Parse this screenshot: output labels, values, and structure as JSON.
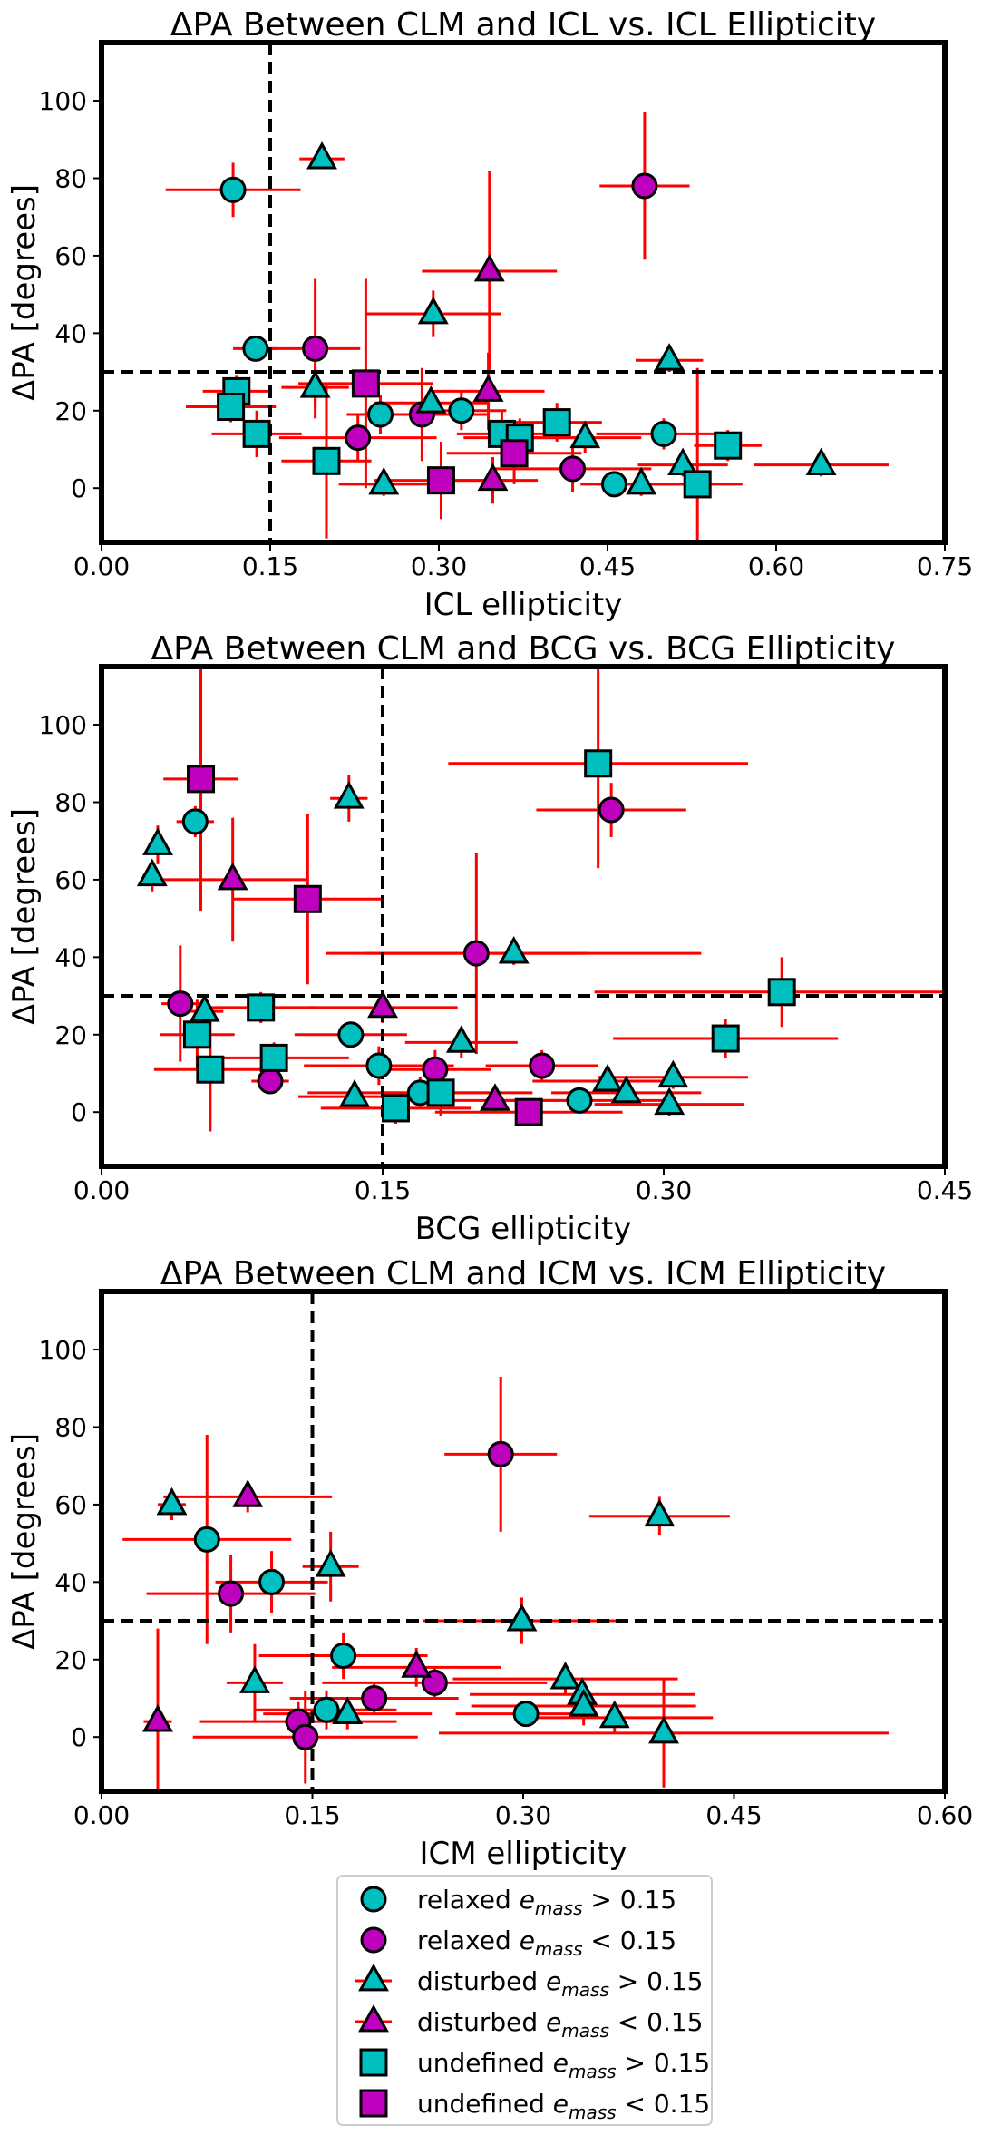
{
  "colors": {
    "cyan": "#00BFBF",
    "magenta": "#BF00BF",
    "error": "#FF0000",
    "axis": "#000000"
  },
  "chart_data": [
    {
      "type": "scatter",
      "title": "ΔPA Between CLM and ICL vs. ICL Ellipticity",
      "xlabel": "ICL ellipticity",
      "ylabel": "ΔPA [degrees]",
      "xlim": [
        0,
        0.75
      ],
      "ylim": [
        -14,
        115
      ],
      "xticks": [
        0,
        0.15,
        0.3,
        0.45,
        0.6,
        0.75
      ],
      "xtick_labels": [
        "0.00",
        "0.15",
        "0.30",
        "0.45",
        "0.60",
        "0.75"
      ],
      "yticks": [
        0,
        20,
        40,
        60,
        80,
        100
      ],
      "ytick_labels": [
        "0",
        "20",
        "40",
        "60",
        "80",
        "100"
      ],
      "vline": 0.15,
      "hline": 30,
      "points": [
        {
          "x": 0.117,
          "y": 77,
          "xerr": 0.06,
          "yerr": 7,
          "marker": "circle",
          "color": "cyan"
        },
        {
          "x": 0.137,
          "y": 36,
          "xerr": 0.02,
          "yerr": 3,
          "marker": "circle",
          "color": "cyan"
        },
        {
          "x": 0.248,
          "y": 19,
          "xerr": 0.03,
          "yerr": 5,
          "marker": "circle",
          "color": "cyan"
        },
        {
          "x": 0.32,
          "y": 20,
          "xerr": 0.04,
          "yerr": 5,
          "marker": "circle",
          "color": "cyan"
        },
        {
          "x": 0.456,
          "y": 1,
          "xerr": 0.03,
          "yerr": 3,
          "marker": "circle",
          "color": "cyan"
        },
        {
          "x": 0.5,
          "y": 14,
          "xerr": 0.06,
          "yerr": 4,
          "marker": "circle",
          "color": "cyan"
        },
        {
          "x": 0.483,
          "y": 78,
          "xerr": 0.04,
          "yerr": 19,
          "marker": "circle",
          "color": "magenta"
        },
        {
          "x": 0.19,
          "y": 36,
          "xerr": 0.04,
          "yerr": 18,
          "marker": "circle",
          "color": "magenta"
        },
        {
          "x": 0.228,
          "y": 13,
          "xerr": 0.07,
          "yerr": 6,
          "marker": "circle",
          "color": "magenta"
        },
        {
          "x": 0.285,
          "y": 19,
          "xerr": 0.06,
          "yerr": 12,
          "marker": "circle",
          "color": "magenta"
        },
        {
          "x": 0.419,
          "y": 5,
          "xerr": 0.07,
          "yerr": 6,
          "marker": "circle",
          "color": "magenta"
        },
        {
          "x": 0.196,
          "y": 85,
          "xerr": 0.02,
          "yerr": 2,
          "marker": "triangle",
          "color": "cyan"
        },
        {
          "x": 0.295,
          "y": 45,
          "xerr": 0.06,
          "yerr": 6,
          "marker": "triangle",
          "color": "cyan"
        },
        {
          "x": 0.19,
          "y": 26,
          "xerr": 0.03,
          "yerr": 5,
          "marker": "triangle",
          "color": "cyan"
        },
        {
          "x": 0.293,
          "y": 22,
          "xerr": 0.05,
          "yerr": 4,
          "marker": "triangle",
          "color": "cyan"
        },
        {
          "x": 0.251,
          "y": 1,
          "xerr": 0.04,
          "yerr": 3,
          "marker": "triangle",
          "color": "cyan"
        },
        {
          "x": 0.43,
          "y": 13,
          "xerr": 0.05,
          "yerr": 4,
          "marker": "triangle",
          "color": "cyan"
        },
        {
          "x": 0.48,
          "y": 1,
          "xerr": 0.04,
          "yerr": 3,
          "marker": "triangle",
          "color": "cyan"
        },
        {
          "x": 0.505,
          "y": 33,
          "xerr": 0.03,
          "yerr": 3,
          "marker": "triangle",
          "color": "cyan"
        },
        {
          "x": 0.517,
          "y": 6,
          "xerr": 0.04,
          "yerr": 3,
          "marker": "triangle",
          "color": "cyan"
        },
        {
          "x": 0.64,
          "y": 6,
          "xerr": 0.06,
          "yerr": 3,
          "marker": "triangle",
          "color": "cyan"
        },
        {
          "x": 0.345,
          "y": 56,
          "xerr": 0.06,
          "yerr": 26,
          "marker": "triangle",
          "color": "magenta"
        },
        {
          "x": 0.344,
          "y": 25,
          "xerr": 0.05,
          "yerr": 10,
          "marker": "triangle",
          "color": "magenta"
        },
        {
          "x": 0.348,
          "y": 2,
          "xerr": 0.04,
          "yerr": 6,
          "marker": "triangle",
          "color": "magenta"
        },
        {
          "x": 0.12,
          "y": 25,
          "xerr": 0.03,
          "yerr": 4,
          "marker": "square",
          "color": "cyan"
        },
        {
          "x": 0.115,
          "y": 21,
          "xerr": 0.04,
          "yerr": 4,
          "marker": "square",
          "color": "cyan"
        },
        {
          "x": 0.138,
          "y": 14,
          "xerr": 0.04,
          "yerr": 6,
          "marker": "square",
          "color": "cyan"
        },
        {
          "x": 0.2,
          "y": 7,
          "xerr": 0.04,
          "yerr": 20,
          "marker": "square",
          "color": "cyan"
        },
        {
          "x": 0.356,
          "y": 14,
          "xerr": 0.04,
          "yerr": 6,
          "marker": "square",
          "color": "cyan"
        },
        {
          "x": 0.372,
          "y": 13,
          "xerr": 0.05,
          "yerr": 5,
          "marker": "square",
          "color": "cyan"
        },
        {
          "x": 0.405,
          "y": 17,
          "xerr": 0.04,
          "yerr": 5,
          "marker": "square",
          "color": "cyan"
        },
        {
          "x": 0.53,
          "y": 1,
          "xerr": 0.04,
          "yerr": 30,
          "marker": "square",
          "color": "cyan"
        },
        {
          "x": 0.557,
          "y": 11,
          "xerr": 0.03,
          "yerr": 4,
          "marker": "square",
          "color": "cyan"
        },
        {
          "x": 0.235,
          "y": 27,
          "xerr": 0.06,
          "yerr": 27,
          "marker": "square",
          "color": "magenta"
        },
        {
          "x": 0.302,
          "y": 2,
          "xerr": 0.06,
          "yerr": 10,
          "marker": "square",
          "color": "magenta"
        },
        {
          "x": 0.367,
          "y": 9,
          "xerr": 0.06,
          "yerr": 8,
          "marker": "square",
          "color": "magenta"
        }
      ]
    },
    {
      "type": "scatter",
      "title": "ΔPA Between CLM and BCG vs. BCG Ellipticity",
      "xlabel": "BCG ellipticity",
      "ylabel": "ΔPA [degrees]",
      "xlim": [
        0,
        0.45
      ],
      "ylim": [
        -14,
        115
      ],
      "xticks": [
        0,
        0.15,
        0.3,
        0.45
      ],
      "xtick_labels": [
        "0.00",
        "0.15",
        "0.30",
        "0.45"
      ],
      "yticks": [
        0,
        20,
        40,
        60,
        80,
        100
      ],
      "ytick_labels": [
        "0",
        "20",
        "40",
        "60",
        "80",
        "100"
      ],
      "vline": 0.15,
      "hline": 30,
      "points": [
        {
          "x": 0.05,
          "y": 75,
          "xerr": 0.01,
          "yerr": 4,
          "marker": "circle",
          "color": "cyan"
        },
        {
          "x": 0.133,
          "y": 20,
          "xerr": 0.03,
          "yerr": 3,
          "marker": "circle",
          "color": "cyan"
        },
        {
          "x": 0.148,
          "y": 12,
          "xerr": 0.04,
          "yerr": 5,
          "marker": "circle",
          "color": "cyan"
        },
        {
          "x": 0.17,
          "y": 5,
          "xerr": 0.06,
          "yerr": 4,
          "marker": "circle",
          "color": "cyan"
        },
        {
          "x": 0.255,
          "y": 3,
          "xerr": 0.05,
          "yerr": 3,
          "marker": "circle",
          "color": "cyan"
        },
        {
          "x": 0.272,
          "y": 78,
          "xerr": 0.04,
          "yerr": 7,
          "marker": "circle",
          "color": "magenta"
        },
        {
          "x": 0.042,
          "y": 28,
          "xerr": 0.01,
          "yerr": 15,
          "marker": "circle",
          "color": "magenta"
        },
        {
          "x": 0.2,
          "y": 41,
          "xerr": 0.06,
          "yerr": 26,
          "marker": "circle",
          "color": "magenta"
        },
        {
          "x": 0.09,
          "y": 8,
          "xerr": 0.01,
          "yerr": 3,
          "marker": "circle",
          "color": "magenta"
        },
        {
          "x": 0.178,
          "y": 11,
          "xerr": 0.03,
          "yerr": 5,
          "marker": "circle",
          "color": "magenta"
        },
        {
          "x": 0.235,
          "y": 12,
          "xerr": 0.03,
          "yerr": 4,
          "marker": "circle",
          "color": "magenta"
        },
        {
          "x": 0.03,
          "y": 69,
          "xerr": 0.005,
          "yerr": 5,
          "marker": "triangle",
          "color": "cyan"
        },
        {
          "x": 0.027,
          "y": 61,
          "xerr": 0.005,
          "yerr": 4,
          "marker": "triangle",
          "color": "cyan"
        },
        {
          "x": 0.132,
          "y": 81,
          "xerr": 0.01,
          "yerr": 6,
          "marker": "triangle",
          "color": "cyan"
        },
        {
          "x": 0.055,
          "y": 26,
          "xerr": 0.01,
          "yerr": 4,
          "marker": "triangle",
          "color": "cyan"
        },
        {
          "x": 0.22,
          "y": 41,
          "xerr": 0.1,
          "yerr": 3,
          "marker": "triangle",
          "color": "cyan"
        },
        {
          "x": 0.192,
          "y": 18,
          "xerr": 0.03,
          "yerr": 4,
          "marker": "triangle",
          "color": "cyan"
        },
        {
          "x": 0.135,
          "y": 4,
          "xerr": 0.03,
          "yerr": 3,
          "marker": "triangle",
          "color": "cyan"
        },
        {
          "x": 0.27,
          "y": 8,
          "xerr": 0.04,
          "yerr": 3,
          "marker": "triangle",
          "color": "cyan"
        },
        {
          "x": 0.28,
          "y": 5,
          "xerr": 0.04,
          "yerr": 3,
          "marker": "triangle",
          "color": "cyan"
        },
        {
          "x": 0.305,
          "y": 9,
          "xerr": 0.04,
          "yerr": 3,
          "marker": "triangle",
          "color": "cyan"
        },
        {
          "x": 0.303,
          "y": 2,
          "xerr": 0.04,
          "yerr": 3,
          "marker": "triangle",
          "color": "cyan"
        },
        {
          "x": 0.07,
          "y": 60,
          "xerr": 0.04,
          "yerr": 16,
          "marker": "triangle",
          "color": "magenta"
        },
        {
          "x": 0.15,
          "y": 27,
          "xerr": 0.04,
          "yerr": 4,
          "marker": "triangle",
          "color": "magenta"
        },
        {
          "x": 0.21,
          "y": 3,
          "xerr": 0.04,
          "yerr": 3,
          "marker": "triangle",
          "color": "magenta"
        },
        {
          "x": 0.265,
          "y": 90,
          "xerr": 0.08,
          "yerr": 27,
          "marker": "square",
          "color": "cyan"
        },
        {
          "x": 0.085,
          "y": 27,
          "xerr": 0.03,
          "yerr": 4,
          "marker": "square",
          "color": "cyan"
        },
        {
          "x": 0.051,
          "y": 20,
          "xerr": 0.02,
          "yerr": 9,
          "marker": "square",
          "color": "cyan"
        },
        {
          "x": 0.058,
          "y": 11,
          "xerr": 0.03,
          "yerr": 16,
          "marker": "square",
          "color": "cyan"
        },
        {
          "x": 0.092,
          "y": 14,
          "xerr": 0.04,
          "yerr": 4,
          "marker": "square",
          "color": "cyan"
        },
        {
          "x": 0.157,
          "y": 1,
          "xerr": 0.04,
          "yerr": 4,
          "marker": "square",
          "color": "cyan"
        },
        {
          "x": 0.181,
          "y": 5,
          "xerr": 0.03,
          "yerr": 6,
          "marker": "square",
          "color": "cyan"
        },
        {
          "x": 0.363,
          "y": 31,
          "xerr": 0.1,
          "yerr": 9,
          "marker": "square",
          "color": "cyan"
        },
        {
          "x": 0.333,
          "y": 19,
          "xerr": 0.06,
          "yerr": 5,
          "marker": "square",
          "color": "cyan"
        },
        {
          "x": 0.053,
          "y": 86,
          "xerr": 0.02,
          "yerr": 34,
          "marker": "square",
          "color": "magenta"
        },
        {
          "x": 0.11,
          "y": 55,
          "xerr": 0.04,
          "yerr": 22,
          "marker": "square",
          "color": "magenta"
        },
        {
          "x": 0.228,
          "y": 0,
          "xerr": 0.05,
          "yerr": 3,
          "marker": "square",
          "color": "magenta"
        }
      ]
    },
    {
      "type": "scatter",
      "title": "ΔPA Between CLM and ICM vs. ICM Ellipticity",
      "xlabel": "ICM  ellipticity",
      "ylabel": "ΔPA [degrees]",
      "xlim": [
        0,
        0.6
      ],
      "ylim": [
        -14,
        115
      ],
      "xticks": [
        0,
        0.15,
        0.3,
        0.45,
        0.6
      ],
      "xtick_labels": [
        "0.00",
        "0.15",
        "0.30",
        "0.45",
        "0.60"
      ],
      "yticks": [
        0,
        20,
        40,
        60,
        80,
        100
      ],
      "ytick_labels": [
        "0",
        "20",
        "40",
        "60",
        "80",
        "100"
      ],
      "vline": 0.15,
      "hline": 30,
      "points": [
        {
          "x": 0.075,
          "y": 51,
          "xerr": 0.06,
          "yerr": 27,
          "marker": "circle",
          "color": "cyan"
        },
        {
          "x": 0.121,
          "y": 40,
          "xerr": 0.04,
          "yerr": 8,
          "marker": "circle",
          "color": "cyan"
        },
        {
          "x": 0.172,
          "y": 21,
          "xerr": 0.06,
          "yerr": 6,
          "marker": "circle",
          "color": "cyan"
        },
        {
          "x": 0.16,
          "y": 7,
          "xerr": 0.05,
          "yerr": 5,
          "marker": "circle",
          "color": "cyan"
        },
        {
          "x": 0.302,
          "y": 6,
          "xerr": 0.05,
          "yerr": 3,
          "marker": "circle",
          "color": "cyan"
        },
        {
          "x": 0.284,
          "y": 73,
          "xerr": 0.04,
          "yerr": 20,
          "marker": "circle",
          "color": "magenta"
        },
        {
          "x": 0.092,
          "y": 37,
          "xerr": 0.06,
          "yerr": 10,
          "marker": "circle",
          "color": "magenta"
        },
        {
          "x": 0.14,
          "y": 4,
          "xerr": 0.07,
          "yerr": 5,
          "marker": "circle",
          "color": "magenta"
        },
        {
          "x": 0.145,
          "y": 0,
          "xerr": 0.08,
          "yerr": 12,
          "marker": "circle",
          "color": "magenta"
        },
        {
          "x": 0.194,
          "y": 10,
          "xerr": 0.06,
          "yerr": 4,
          "marker": "circle",
          "color": "magenta"
        },
        {
          "x": 0.237,
          "y": 14,
          "xerr": 0.08,
          "yerr": 4,
          "marker": "circle",
          "color": "magenta"
        },
        {
          "x": 0.05,
          "y": 60,
          "xerr": 0.01,
          "yerr": 4,
          "marker": "triangle",
          "color": "cyan"
        },
        {
          "x": 0.163,
          "y": 44,
          "xerr": 0.02,
          "yerr": 9,
          "marker": "triangle",
          "color": "cyan"
        },
        {
          "x": 0.109,
          "y": 14,
          "xerr": 0.02,
          "yerr": 10,
          "marker": "triangle",
          "color": "cyan"
        },
        {
          "x": 0.299,
          "y": 30,
          "xerr": 0.07,
          "yerr": 6,
          "marker": "triangle",
          "color": "cyan"
        },
        {
          "x": 0.33,
          "y": 15,
          "xerr": 0.08,
          "yerr": 4,
          "marker": "triangle",
          "color": "cyan"
        },
        {
          "x": 0.342,
          "y": 11,
          "xerr": 0.08,
          "yerr": 4,
          "marker": "triangle",
          "color": "cyan"
        },
        {
          "x": 0.343,
          "y": 8,
          "xerr": 0.08,
          "yerr": 5,
          "marker": "triangle",
          "color": "cyan"
        },
        {
          "x": 0.365,
          "y": 5,
          "xerr": 0.07,
          "yerr": 4,
          "marker": "triangle",
          "color": "cyan"
        },
        {
          "x": 0.4,
          "y": 1,
          "xerr": 0.16,
          "yerr": 14,
          "marker": "triangle",
          "color": "cyan"
        },
        {
          "x": 0.397,
          "y": 57,
          "xerr": 0.05,
          "yerr": 5,
          "marker": "triangle",
          "color": "cyan"
        },
        {
          "x": 0.175,
          "y": 6,
          "xerr": 0.06,
          "yerr": 4,
          "marker": "triangle",
          "color": "cyan"
        },
        {
          "x": 0.104,
          "y": 62,
          "xerr": 0.06,
          "yerr": 4,
          "marker": "triangle",
          "color": "magenta"
        },
        {
          "x": 0.04,
          "y": 4,
          "xerr": 0.01,
          "yerr": 24,
          "marker": "triangle",
          "color": "magenta"
        },
        {
          "x": 0.224,
          "y": 18,
          "xerr": 0.06,
          "yerr": 5,
          "marker": "triangle",
          "color": "magenta"
        }
      ]
    }
  ],
  "legend": {
    "items": [
      {
        "marker": "circle",
        "color": "cyan",
        "label": "relaxed",
        "math_base": "e",
        "math_sub": "mass",
        "relation": " > 0.15"
      },
      {
        "marker": "circle",
        "color": "magenta",
        "label": "relaxed",
        "math_base": "e",
        "math_sub": "mass",
        "relation": " < 0.15"
      },
      {
        "marker": "triangle",
        "color": "cyan",
        "label": "disturbed",
        "math_base": "e",
        "math_sub": "mass",
        "relation": " > 0.15"
      },
      {
        "marker": "triangle",
        "color": "magenta",
        "label": "disturbed",
        "math_base": "e",
        "math_sub": "mass",
        "relation": " < 0.15"
      },
      {
        "marker": "square",
        "color": "cyan",
        "label": "undefined",
        "math_base": "e",
        "math_sub": "mass",
        "relation": " > 0.15"
      },
      {
        "marker": "square",
        "color": "magenta",
        "label": "undefined",
        "math_base": "e",
        "math_sub": "mass",
        "relation": " < 0.15"
      }
    ]
  }
}
